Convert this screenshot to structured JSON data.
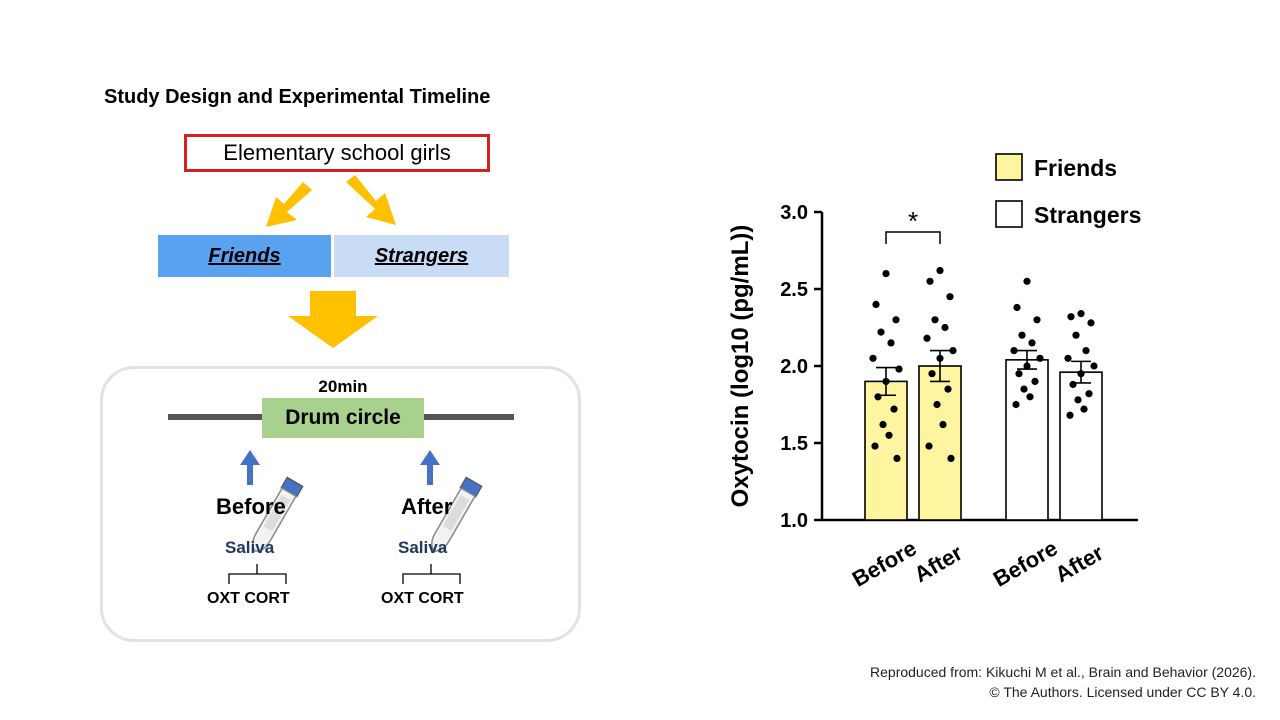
{
  "design": {
    "title": "Study Design and Experimental Timeline",
    "population": "Elementary school girls",
    "groups": [
      "Friends",
      "Strangers"
    ],
    "duration": "20min",
    "session": "Drum circle",
    "timepoints": [
      "Before",
      "After"
    ],
    "sample": "Saliva",
    "assays": [
      "OXT",
      "CORT"
    ],
    "colors": {
      "population_border": "#d42020",
      "friends_fill": "#5aa2ef",
      "strangers_fill": "#c8dcf6",
      "arrow": "#ffc000",
      "session_fill": "#a9d18e",
      "sample_arrow": "#4472c4"
    }
  },
  "chart_data": {
    "type": "bar",
    "title": "",
    "xlabel": "",
    "ylabel": "Oxytocin (log10 (pg/mL))",
    "ylim": [
      1.0,
      3.0
    ],
    "yticks": [
      "1.0",
      "1.5",
      "2.0",
      "2.5",
      "3.0"
    ],
    "categories": [
      "Before",
      "After",
      "Before",
      "After"
    ],
    "series": [
      {
        "name": "Friends",
        "color": "#fff5a0",
        "bars": [
          {
            "category": "Before",
            "mean": 1.9,
            "sem": 0.09,
            "points": [
              2.6,
              2.4,
              2.3,
              2.22,
              2.15,
              2.05,
              1.98,
              1.9,
              1.8,
              1.72,
              1.62,
              1.55,
              1.48,
              1.4
            ]
          },
          {
            "category": "After",
            "mean": 2.0,
            "sem": 0.1,
            "points": [
              2.62,
              2.55,
              2.45,
              2.3,
              2.25,
              2.18,
              2.1,
              2.05,
              1.95,
              1.85,
              1.75,
              1.62,
              1.48,
              1.4
            ]
          }
        ]
      },
      {
        "name": "Strangers",
        "color": "#ffffff",
        "bars": [
          {
            "category": "Before",
            "mean": 2.04,
            "sem": 0.06,
            "points": [
              2.55,
              2.38,
              2.3,
              2.2,
              2.15,
              2.1,
              2.05,
              2.0,
              1.95,
              1.9,
              1.85,
              1.8,
              1.75
            ]
          },
          {
            "category": "After",
            "mean": 1.96,
            "sem": 0.07,
            "points": [
              2.34,
              2.32,
              2.28,
              2.2,
              2.1,
              2.05,
              2.0,
              1.95,
              1.88,
              1.82,
              1.78,
              1.72,
              1.68
            ]
          }
        ]
      }
    ],
    "annotations": [
      {
        "text": "*",
        "between": [
          0,
          1
        ]
      }
    ],
    "legend": {
      "position": "top-right",
      "entries": [
        "Friends",
        "Strangers"
      ]
    }
  },
  "source_note": {
    "line1": "Reproduced from: Kikuchi M et al., Brain and Behavior (2026).",
    "line2": "© The Authors. Licensed under CC BY 4.0."
  }
}
